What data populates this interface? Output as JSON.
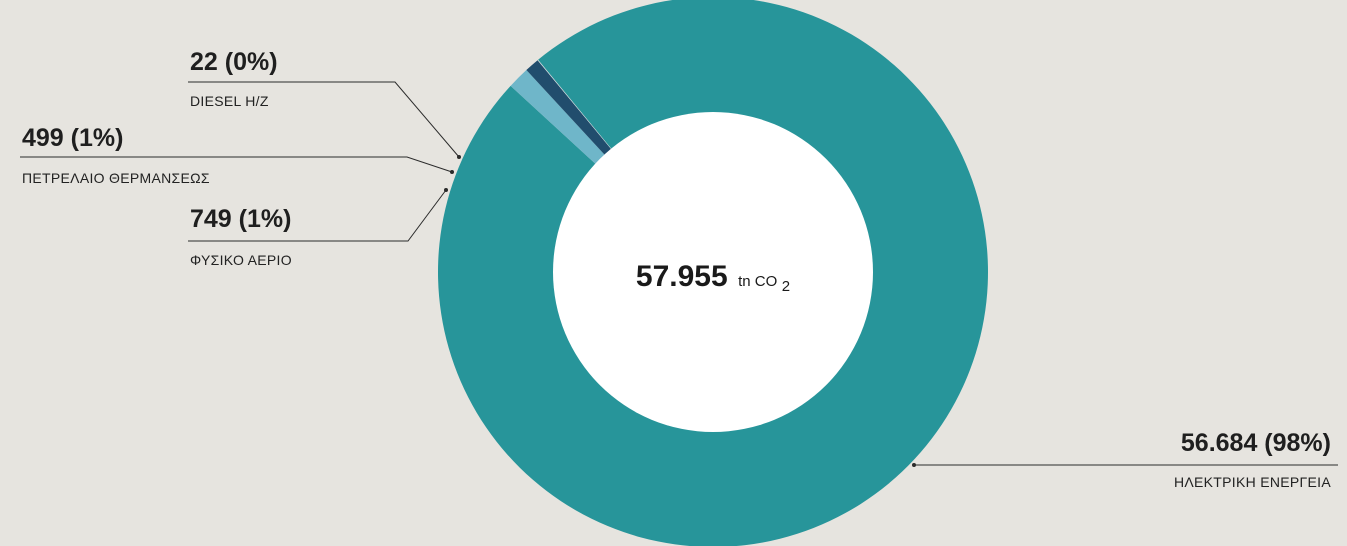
{
  "chart_data": {
    "type": "pie",
    "style": "donut",
    "center": {
      "value": "57.955",
      "unit": "tn CO",
      "unit_subscript": "2"
    },
    "slices": [
      {
        "name": "ΗΛΕΚΤΡΙΚΗ ΕΝΕΡΓΕΙΑ",
        "value": 56684,
        "label": "56.684 (98%)",
        "color": "#27959a"
      },
      {
        "name": "ΦΥΣΙΚΟ ΑΕΡΙΟ",
        "value": 749,
        "label": "749 (1%)",
        "color": "#6fb6c9"
      },
      {
        "name": "ΠΕΤΡΕΛΑΙΟ ΘΕΡΜΑΝΣΕΩΣ",
        "value": 499,
        "label": "499 (1%)",
        "color": "#214d6d"
      },
      {
        "name": "DIESEL H/Z",
        "value": 22,
        "label": "22 (0%)",
        "color": "#c9d7dc"
      }
    ]
  }
}
